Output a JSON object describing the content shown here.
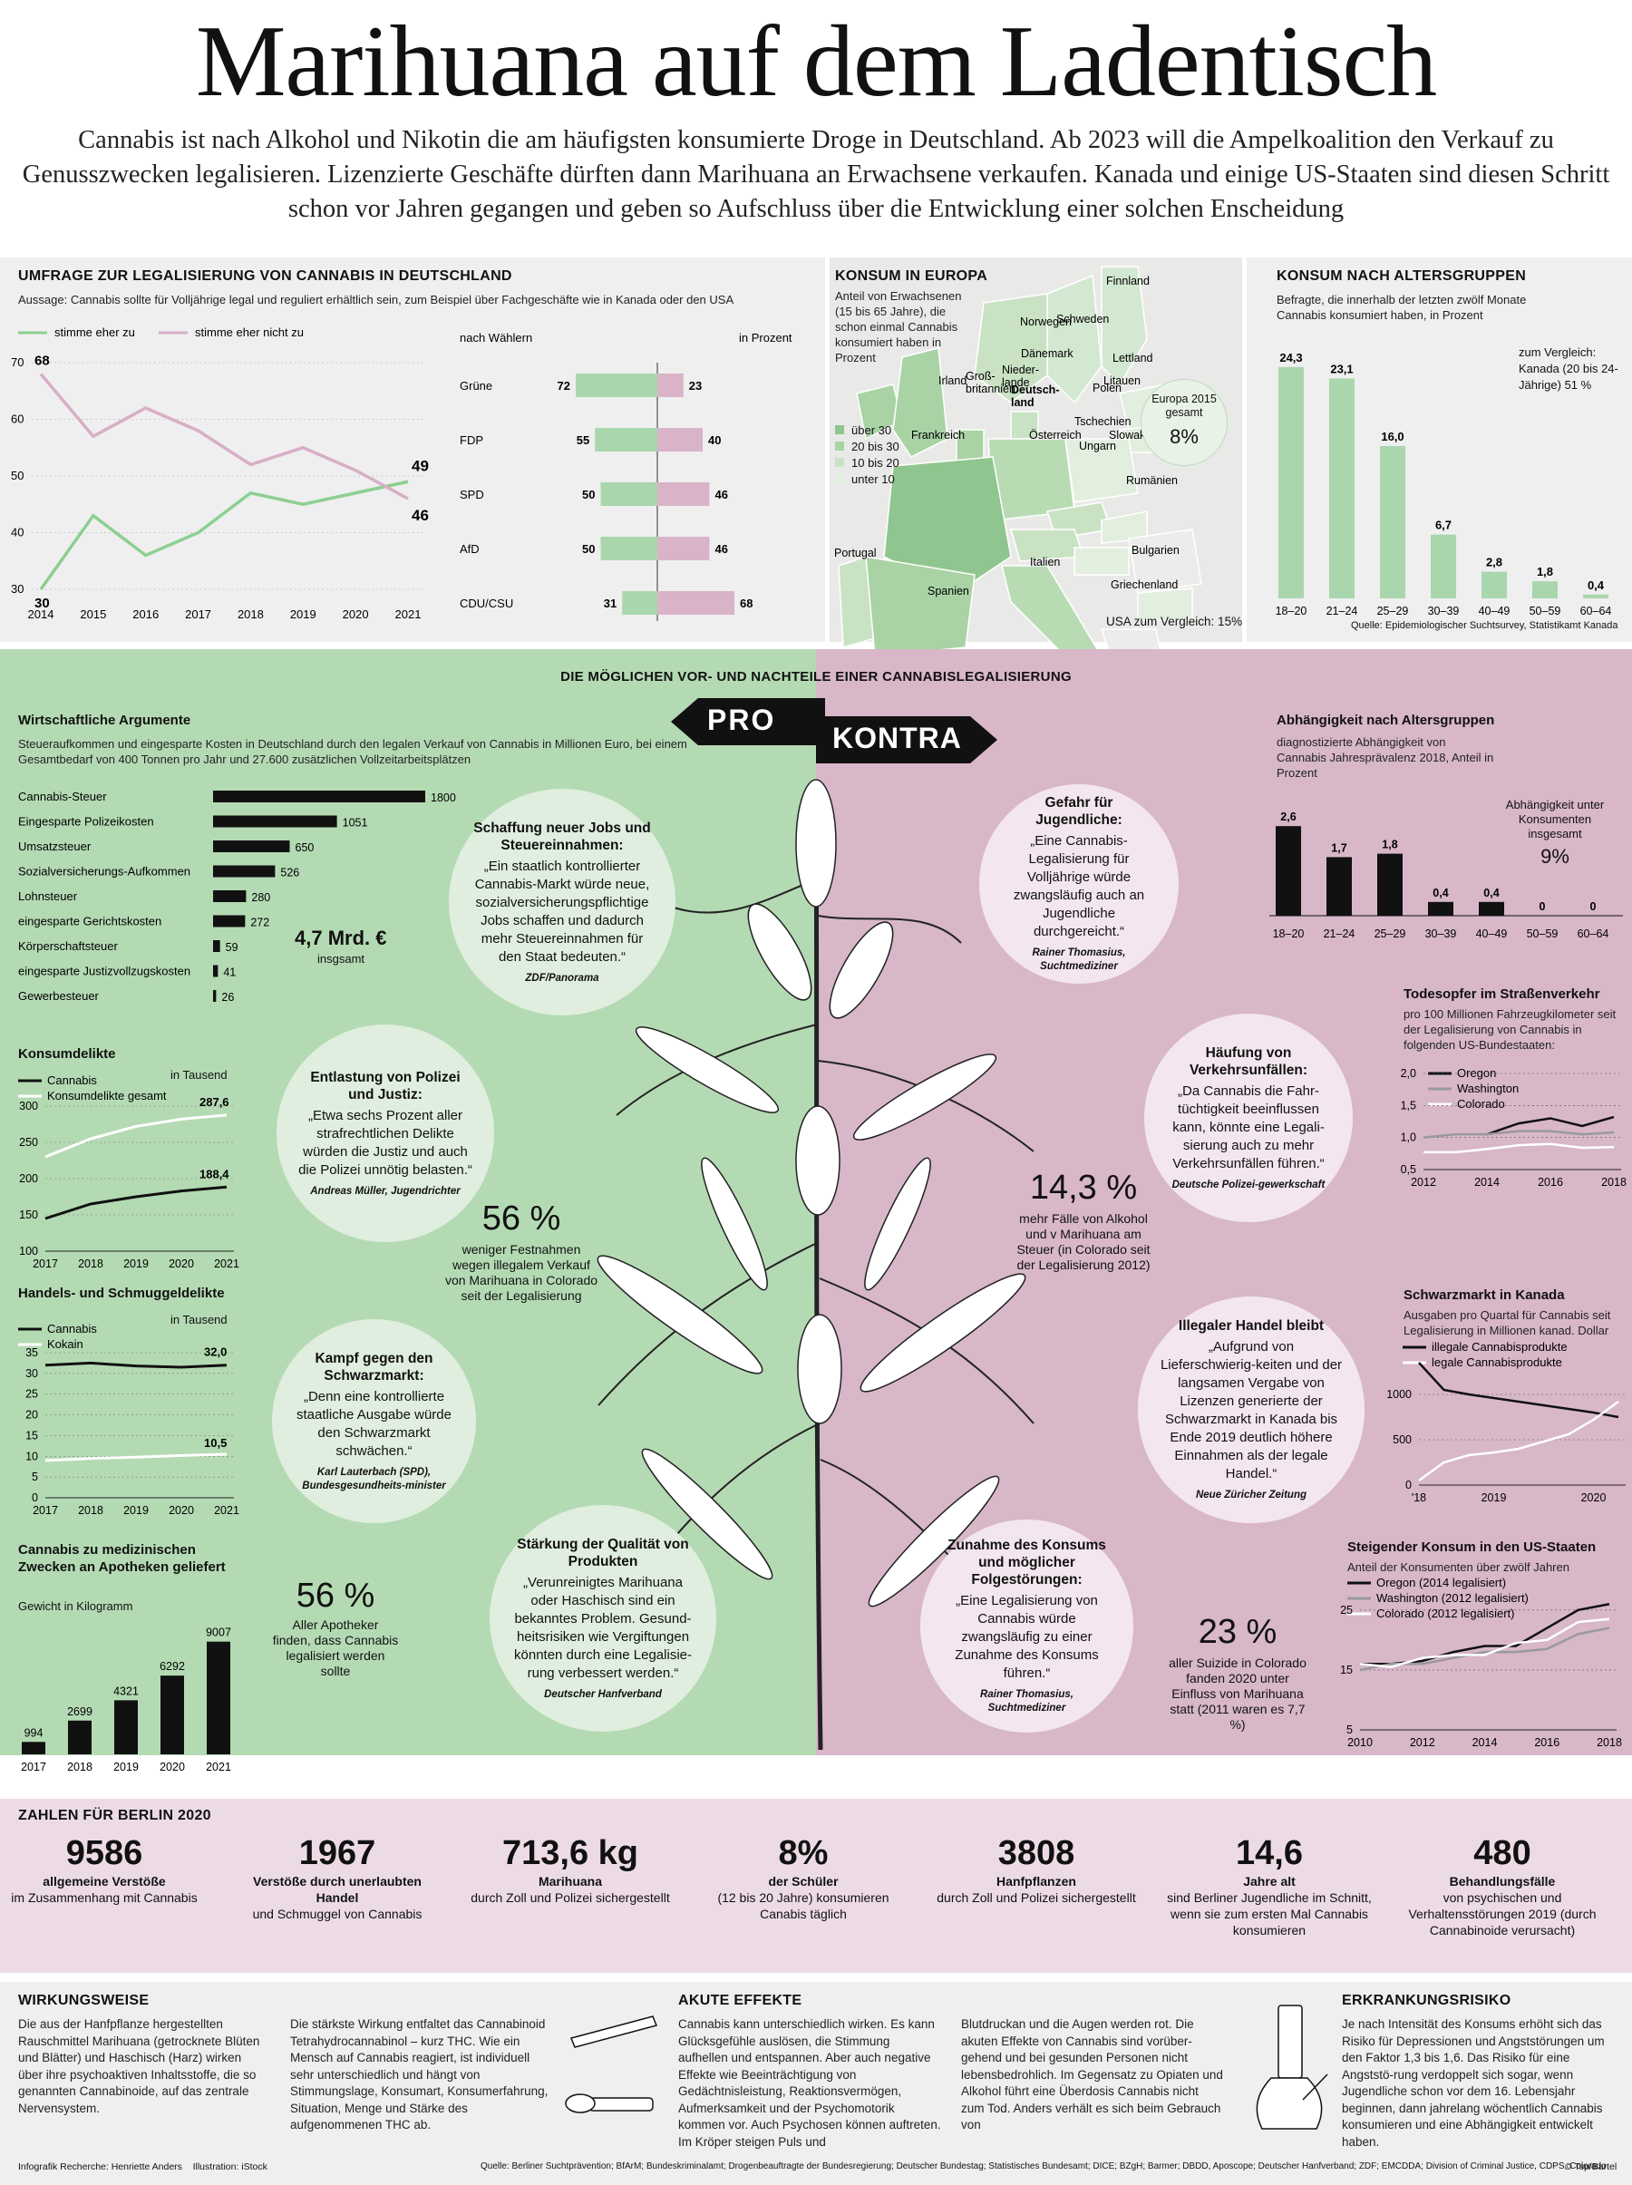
{
  "header": {
    "title": "Marihuana auf dem Ladentisch",
    "lead": "Cannabis ist nach Alkohol und Nikotin die am häufigsten konsumierte Droge in Deutschland. Ab 2023 will die Ampelkoalition den Verkauf zu Genusszwecken legalisieren. Lizenzierte Geschäfte dürften dann Marihuana an Erwachsene verkaufen. Kanada und einige US-Staaten sind diesen Schritt schon vor Jahren gegangen und geben so Aufschluss über die Entwicklung einer solchen Enscheidung"
  },
  "survey": {
    "title": "UMFRAGE ZUR LEGALISIERUNG VON CANNABIS IN DEUTSCHLAND",
    "subtitle": "Aussage: Cannabis sollte für Volljährige legal und reguliert erhältlich sein, zum Beispiel über Fachgeschäfte wie in Kanada oder den USA",
    "legend_yes": "stimme eher zu",
    "legend_no": "stimme eher nicht zu",
    "voters_label": "nach Wählern",
    "unit_label": "in Prozent"
  },
  "europe": {
    "title": "KONSUM IN EUROPA",
    "subtitle": "Anteil von Erwachsenen (15 bis 65 Jahre), die schon einmal Cannabis konsumiert haben in Prozent",
    "legend": [
      "über 30",
      "20 bis 30",
      "10 bis 20",
      "unter 10"
    ],
    "europe_label": "Europa 2015 gesamt",
    "europe_value": "8%",
    "usa_note": "USA zum Vergleich: 15%",
    "countries": [
      "Finnland",
      "Norwegen",
      "Schweden",
      "Lettland",
      "Litauen",
      "Dänemark",
      "Irland",
      "Groß-britannien",
      "Nieder-lande",
      "Polen",
      "Deutsch-land",
      "Tschechien",
      "Slowakei",
      "Frankreich",
      "Österreich",
      "Ungarn",
      "Rumänien",
      "Portugal",
      "Spanien",
      "Italien",
      "Bulgarien",
      "Griechenland"
    ]
  },
  "age": {
    "title": "KONSUM NACH ALTERSGRUPPEN",
    "subtitle": "Befragte, die innerhalb der letzten zwölf Monate Cannabis konsumiert haben, in Prozent",
    "compare": "zum Vergleich: Kanada (20 bis 24-Jährige) 51 %",
    "source": "Quelle: Epidemiologischer Suchtsurvey, Statistikamt Kanada"
  },
  "middle": {
    "title": "DIE MÖGLICHEN VOR- UND NACHTEILE EINER CANNABISLEGALISIERUNG",
    "pro": "PRO",
    "contra": "KONTRA"
  },
  "econ": {
    "title": "Wirtschaftliche Argumente",
    "subtitle": "Steueraufkommen und eingesparte Kosten in Deutschland durch den legalen Verkauf von Cannabis in Millionen Euro, bei einem Gesamtbedarf von 400 Tonnen pro Jahr und 27.600 zusätzlichen Vollzeitarbeitsplätzen",
    "total": "4,7 Mrd. €",
    "total_sub": "insgsamt"
  },
  "consum_crime": {
    "title": "Konsumdelikte",
    "unit": "in Tausend",
    "legend": [
      "Cannabis",
      "Konsumdelikte gesamt"
    ]
  },
  "trade_crime": {
    "title": "Handels- und Schmuggeldelikte",
    "unit": "in Tausend",
    "legend": [
      "Cannabis",
      "Kokain"
    ]
  },
  "medical": {
    "title": "Cannabis zu medizinischen Zwecken an Apotheken geliefert",
    "subtitle": "Gewicht in Kilogramm"
  },
  "pharmacies": {
    "value": "56 %",
    "text": "Aller Apotheker finden, dass Cannabis legalisiert werden sollte"
  },
  "colorado_stat": {
    "value": "56 %",
    "text": "weniger Festnahmen wegen illegalem Verkauf von Marihuana in Colorado seit der Legalisierung"
  },
  "drivers_stat": {
    "value": "14,3 %",
    "text": "mehr Fälle von Alkohol und v Marihuana am Steuer (in Colorado seit der Legalisierung 2012)"
  },
  "suicide_stat": {
    "value": "23 %",
    "text": "aller Suizide in Colorado fanden 2020 unter Einfluss von Marihuana statt (2011 waren es 7,7 %)"
  },
  "circles": [
    {
      "title": "Schaffung neuer Jobs und Steuereinnahmen:",
      "text": "„Ein staatlich kontrollierter Cannabis-Markt würde neue, sozialversicherungspflichtige Jobs schaffen und dadurch mehr Steuereinnahmen für den Staat bedeuten.“",
      "source": "ZDF/Panorama"
    },
    {
      "title": "Entlastung von Polizei und Justiz:",
      "text": "„Etwa sechs Prozent aller strafrechtlichen Delikte würden die Justiz und auch die Polizei unnötig belasten.“",
      "source": "Andreas Müller, Jugendrichter"
    },
    {
      "title": "Kampf gegen den Schwarzmarkt:",
      "text": "„Denn eine kontrollierte staatliche Ausgabe würde den Schwarzmarkt schwächen.“",
      "source": "Karl Lauterbach (SPD), Bundesgesundheits-minister"
    },
    {
      "title": "Stärkung der Qualität von Produkten",
      "text": "„Verunreinigtes Marihuana oder Haschisch sind ein bekanntes Problem. Gesund-heitsrisiken wie Vergiftungen könnten durch eine Legalisie-rung verbessert werden.“",
      "source": "Deutscher Hanfverband"
    },
    {
      "title": "Gefahr für Jugendliche:",
      "text": "„Eine Cannabis-Legalisierung für Volljährige würde zwangsläufig auch an Jugendliche durchgereicht.“",
      "source": "Rainer Thomasius, Suchtmediziner"
    },
    {
      "title": "Häufung von Verkehrsunfällen:",
      "text": "„Da Cannabis die Fahr-tüchtigkeit beeinflussen kann, könnte eine Legali-sierung auch zu mehr Verkehrsunfällen führen.“",
      "source": "Deutsche Polizei-gewerkschaft"
    },
    {
      "title": "Illegaler Handel bleibt",
      "text": "„Aufgrund von Lieferschwierig-keiten und der langsamen Vergabe von Lizenzen generierte der Schwarzmarkt in Kanada bis Ende 2019 deutlich höhere Einnahmen als der legale Handel.“",
      "source": "Neue Züricher Zeitung"
    },
    {
      "title": "Zunahme des Konsums und möglicher Folgestörungen:",
      "text": "„Eine Legalisierung von Cannabis würde zwangsläufig zu einer Zunahme des Konsums führen.“",
      "source": "Rainer Thomasius, Suchtmediziner"
    }
  ],
  "dependency": {
    "title": "Abhängigkeit nach Altersgruppen",
    "subtitle": "diagnostizierte Abhängigkeit von Cannabis Jahresprävalenz 2018, Anteil in Prozent",
    "total_label": "Abhängigkeit unter Konsumenten insgesamt",
    "total_value": "9%"
  },
  "traffic": {
    "title": "Todesopfer im Straßenverkehr",
    "subtitle": "pro 100 Millionen Fahrzeugkilometer seit der Legalisierung von Cannabis in folgenden US-Bundestaaten:",
    "legend": [
      "Oregon",
      "Washington",
      "Colorado"
    ]
  },
  "blackmarket": {
    "title": "Schwarzmarkt in Kanada",
    "subtitle": "Ausgaben pro Quartal für Cannabis seit Legalisierung in Millionen kanad. Dollar",
    "legend": [
      "illegale Cannabisprodukte",
      "legale Cannabisprodukte"
    ]
  },
  "usconsum": {
    "title": "Steigender Konsum in den US-Staaten",
    "subtitle": "Anteil der Konsumenten über zwölf Jahren",
    "legend": [
      "Oregon (2014 legalisiert)",
      "Washington (2012 legalisiert)",
      "Colorado (2012 legalisiert)"
    ]
  },
  "berlin": {
    "title": "ZAHLEN FÜR BERLIN 2020",
    "stats": [
      {
        "n": "9586",
        "b": "allgemeine Verstöße",
        "t": "im Zusammenhang mit Cannabis"
      },
      {
        "n": "1967",
        "b": "Verstöße durch unerlaubten Handel",
        "t": "und Schmuggel von Cannabis"
      },
      {
        "n": "713,6 kg",
        "b": "Marihuana",
        "t": "durch Zoll und Polizei sichergestellt"
      },
      {
        "n": "8%",
        "b": "der Schüler",
        "t": "(12 bis 20 Jahre) konsumieren Canabis täglich"
      },
      {
        "n": "3808",
        "b": "Hanfpflanzen",
        "t": "durch Zoll und Polizei sichergestellt"
      },
      {
        "n": "14,6",
        "b": "Jahre alt",
        "t": "sind Berliner Jugendliche im Schnitt, wenn sie zum ersten Mal Cannabis konsumieren"
      },
      {
        "n": "480",
        "b": "Behandlungsfälle",
        "t": "von psychischen und Verhaltensstörungen 2019 (durch Cannabinoide verursacht)"
      }
    ]
  },
  "bottom": {
    "effect_title": "WIRKUNGSWEISE",
    "effect_1": "Die aus der Hanfpflanze hergestellten Rauschmittel Marihuana (getrocknete Blüten und Blätter) und Haschisch (Harz) wirken über ihre psychoaktiven Inhaltsstoffe, die so genannten Cannabinoide, auf das zentrale Nervensystem.",
    "effect_2": "Die stärkste Wirkung entfaltet das Cannabinoid Tetrahydrocannabinol – kurz THC. Wie ein Mensch auf Cannabis reagiert, ist individuell sehr unterschiedlich und hängt von Stimmungslage, Konsumart, Konsumerfahrung, Situation, Menge und Stärke des aufgenommenen THC ab.",
    "acute_title": "AKUTE EFFEKTE",
    "acute_1": "Cannabis kann unterschiedlich wirken. Es kann Glücksgefühle auslösen, die Stimmung aufhellen und entspannen. Aber auch negative Effekte wie Beeinträchtigung von Gedächtnisleistung, Reaktionsvermögen, Aufmerksamkeit und der Psychomotorik kommen vor. Auch Psychosen können auftreten. Im Kröper steigen Puls und",
    "acute_2": "Blutdruckan und die Augen werden rot. Die akuten Effekte von Cannabis sind vorüber-gehend und bei gesunden Personen nicht lebensbedrohlich. Im Gegensatz zu Opiaten und Alkohol führt eine Überdosis Cannabis nicht zum Tod. Anders verhält es sich beim Gebrauch von",
    "risk_title": "ERKRANKUNGSRISIKO",
    "risk_1": "Je nach Intensität des Konsums erhöht sich das Risiko für Depressionen und Angststörungen um den Faktor 1,3 bis 1,6. Das Risiko für eine Angststö-rung verdoppelt sich sogar, wenn Jugendliche schon vor dem 16. Lebensjahr beginnen, dann jahrelang wöchentlich Cannabis konsumieren und eine Abhängigkeit entwickelt haben."
  },
  "footer": {
    "credit": "Infografik Recherche: Henriette Anders    Illustration: iStock",
    "sources": "Quelle: Berliner Suchtprävention; BfArM; Bundeskriminalamt; Drogenbeauftragte der Bundesregierung; Deutscher Bundestag; Statistisches Bundesamt; DICE; BZgH; Barmer; DBDD, Aposcope; Deutscher Hanfverband; ZDF; EMCDDA; Division of Criminal Justice, CDPS, Colorado",
    "copyright": "© Tsp/Bartel"
  },
  "colors": {
    "green": "#a9d6ad",
    "greenbg": "#b5dbb3",
    "pink": "#d9b3c8",
    "pinkbg": "#d8b6c8",
    "line_green": "#8ccf92",
    "line_pink": "#d8aec6"
  },
  "chart_data": [
    {
      "type": "line",
      "id": "survey_trend",
      "x": [
        2014,
        2015,
        2016,
        2017,
        2018,
        2019,
        2020,
        2021
      ],
      "series": [
        {
          "name": "stimme eher zu",
          "values": [
            30,
            43,
            36,
            40,
            47,
            45,
            47,
            49
          ]
        },
        {
          "name": "stimme eher nicht zu",
          "values": [
            68,
            57,
            62,
            58,
            52,
            55,
            51,
            46
          ]
        }
      ],
      "ylim": [
        30,
        70
      ],
      "yticks": [
        30,
        40,
        50,
        60,
        70
      ],
      "data_labels": [
        "68",
        "30",
        "49",
        "46"
      ]
    },
    {
      "type": "bar",
      "id": "survey_voters",
      "categories": [
        "Grüne",
        "FDP",
        "SPD",
        "AfD",
        "CDU/CSU"
      ],
      "series": [
        {
          "name": "stimme eher zu",
          "values": [
            72,
            55,
            50,
            50,
            31
          ]
        },
        {
          "name": "stimme eher nicht zu",
          "values": [
            23,
            40,
            46,
            46,
            68
          ]
        }
      ]
    },
    {
      "type": "bar",
      "id": "age_consumption",
      "categories": [
        "18–20",
        "21–24",
        "25–29",
        "30–39",
        "40–49",
        "50–59",
        "60–64"
      ],
      "values": [
        24.3,
        23.1,
        16.0,
        6.7,
        2.8,
        1.8,
        0.4
      ],
      "labels": [
        "24,3",
        "23,1",
        "16,0",
        "6,7",
        "2,8",
        "1,8",
        "0,4"
      ]
    },
    {
      "type": "bar",
      "id": "econ",
      "categories": [
        "Cannabis-Steuer",
        "Eingesparte Polizeikosten",
        "Umsatzsteuer",
        "Sozialversicherungs-Aufkommen",
        "Lohnsteuer",
        "eingesparte Gerichtskosten",
        "Körperschaftsteuer",
        "eingesparte Justizvollzugskosten",
        "Gewerbesteuer"
      ],
      "values": [
        1800,
        1051,
        650,
        526,
        280,
        272,
        59,
        41,
        26
      ]
    },
    {
      "type": "line",
      "id": "consum_crime",
      "x": [
        2017,
        2018,
        2019,
        2020,
        2021
      ],
      "series": [
        {
          "name": "Cannabis",
          "values": [
            145,
            165,
            175,
            183,
            188.4
          ]
        },
        {
          "name": "Konsumdelikte gesamt",
          "values": [
            230,
            255,
            272,
            282,
            287.6
          ]
        }
      ],
      "ylim": [
        100,
        300
      ],
      "yticks": [
        100,
        150,
        200,
        250,
        300
      ],
      "data_labels": [
        "287,6",
        "188,4"
      ]
    },
    {
      "type": "line",
      "id": "trade_crime",
      "x": [
        2017,
        2018,
        2019,
        2020,
        2021
      ],
      "series": [
        {
          "name": "Cannabis",
          "values": [
            32,
            32.5,
            31.8,
            31.5,
            32
          ]
        },
        {
          "name": "Kokain",
          "values": [
            9,
            9.5,
            9.8,
            10.2,
            10.5
          ]
        }
      ],
      "ylim": [
        0,
        35
      ],
      "yticks": [
        0,
        5,
        10,
        15,
        20,
        25,
        30,
        35
      ],
      "data_labels": [
        "32,0",
        "10,5"
      ]
    },
    {
      "type": "bar",
      "id": "medical",
      "categories": [
        "2017",
        "2018",
        "2019",
        "2020",
        "2021"
      ],
      "values": [
        994,
        2699,
        4321,
        6292,
        9007
      ],
      "labels": [
        "994",
        "2699",
        "4321",
        "6292",
        "9007"
      ]
    },
    {
      "type": "bar",
      "id": "dependency",
      "categories": [
        "18–20",
        "21–24",
        "25–29",
        "30–39",
        "40–49",
        "50–59",
        "60–64"
      ],
      "values": [
        2.6,
        1.7,
        1.8,
        0.4,
        0.4,
        0,
        0
      ],
      "labels": [
        "2,6",
        "1,7",
        "1,8",
        "0,4",
        "0,4",
        "0",
        "0"
      ]
    },
    {
      "type": "line",
      "id": "traffic",
      "x": [
        2012,
        2013,
        2014,
        2015,
        2016,
        2017,
        2018
      ],
      "series": [
        {
          "name": "Oregon",
          "values": [
            null,
            null,
            1.05,
            1.22,
            1.3,
            1.18,
            1.32
          ]
        },
        {
          "name": "Washington",
          "values": [
            1.0,
            1.05,
            1.05,
            1.1,
            1.1,
            1.05,
            1.08
          ]
        },
        {
          "name": "Colorado",
          "values": [
            0.77,
            0.77,
            0.82,
            0.88,
            0.9,
            0.84,
            0.85
          ]
        }
      ],
      "ylim": [
        0.5,
        2.0
      ],
      "yticks": [
        "0,5",
        "1,0",
        "1,5",
        "2,0"
      ],
      "xticks": [
        "2012",
        "2014",
        "2016",
        "2018"
      ]
    },
    {
      "type": "line",
      "id": "blackmarket",
      "x": [
        2018.75,
        2019,
        2019.25,
        2019.5,
        2019.75,
        2020,
        2020.25,
        2020.5,
        2020.75
      ],
      "series": [
        {
          "name": "illegale Cannabisprodukte",
          "values": [
            1350,
            1050,
            1000,
            960,
            920,
            880,
            840,
            800,
            750
          ]
        },
        {
          "name": "legale Cannabisprodukte",
          "values": [
            50,
            250,
            330,
            360,
            400,
            480,
            560,
            720,
            920
          ]
        }
      ],
      "ylim": [
        0,
        1400
      ],
      "yticks": [
        0,
        500,
        1000
      ],
      "xticks": [
        "'18",
        "2019",
        "2020"
      ]
    },
    {
      "type": "line",
      "id": "usconsum",
      "x": [
        2010,
        2011,
        2012,
        2013,
        2014,
        2015,
        2016,
        2017,
        2018
      ],
      "series": [
        {
          "name": "Oregon (2014 legalisiert)",
          "values": [
            16,
            16,
            16.5,
            18,
            19,
            19,
            22,
            25,
            26
          ]
        },
        {
          "name": "Washington (2012 legalisiert)",
          "values": [
            15,
            16,
            16,
            17,
            18,
            18,
            18.5,
            21,
            22
          ]
        },
        {
          "name": "Colorado (2012 legalisiert)",
          "values": [
            16,
            15.5,
            17,
            17.5,
            17.5,
            19.5,
            20,
            23,
            23.5
          ]
        }
      ],
      "ylim": [
        5,
        28
      ],
      "yticks": [
        5,
        15,
        25
      ],
      "xticks": [
        "2010",
        "2012",
        "2014",
        "2016",
        "2018"
      ]
    }
  ]
}
